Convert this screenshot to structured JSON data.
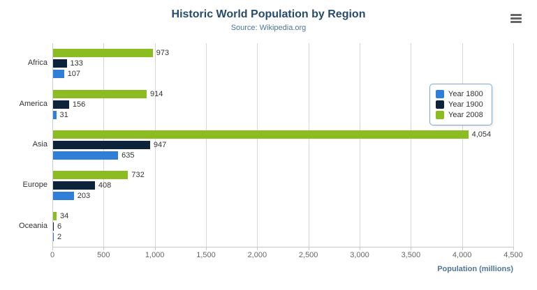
{
  "header": {
    "title": "Historic World Population by Region",
    "subtitle": "Source: Wikipedia.org"
  },
  "menu_icon": "hamburger-export-menu",
  "chart_data": {
    "type": "bar",
    "orientation": "horizontal",
    "title": "Historic World Population by Region",
    "subtitle": "Source: Wikipedia.org",
    "categories": [
      "Africa",
      "America",
      "Asia",
      "Europe",
      "Oceania"
    ],
    "series": [
      {
        "name": "Year 1800",
        "color": "#2f7ed8",
        "values": [
          107,
          31,
          635,
          203,
          2
        ]
      },
      {
        "name": "Year 1900",
        "color": "#0d233a",
        "values": [
          133,
          156,
          947,
          408,
          6
        ]
      },
      {
        "name": "Year 2008",
        "color": "#8bbc21",
        "values": [
          973,
          914,
          4054,
          732,
          34
        ]
      }
    ],
    "display_order_top_to_bottom": [
      "Year 2008",
      "Year 1900",
      "Year 1800"
    ],
    "xlabel": "Population (millions)",
    "ylabel": "",
    "xlim": [
      0,
      4500
    ],
    "xticks": [
      0,
      500,
      1000,
      1500,
      2000,
      2500,
      3000,
      3500,
      4000,
      4500
    ],
    "grid": "vertical",
    "legend_position": "right",
    "data_labels": true
  }
}
